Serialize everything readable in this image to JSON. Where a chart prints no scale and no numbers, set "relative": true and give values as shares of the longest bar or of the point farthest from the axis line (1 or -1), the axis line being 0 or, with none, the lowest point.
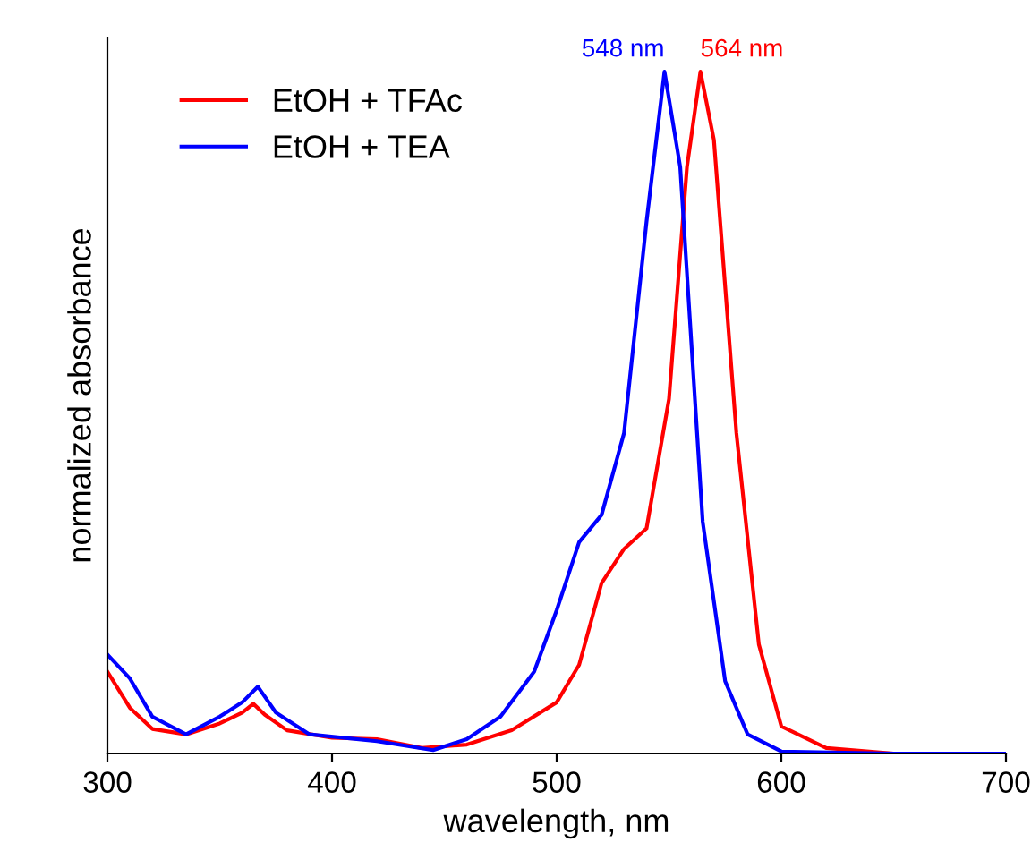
{
  "chart_data": {
    "type": "line",
    "relative": true,
    "xlabel": "wavelength, nm",
    "ylabel": "normalized absorbance",
    "xlim": [
      300,
      700
    ],
    "xticks": [
      300,
      400,
      500,
      600,
      700
    ],
    "legend": "top left",
    "grid": false,
    "tick_labels": "x",
    "annotations": [
      {
        "text": "548 nm",
        "x": 548,
        "y": 1.0
      },
      {
        "text": "564 nm",
        "x": 564,
        "y": 1.0
      }
    ],
    "series": [
      {
        "name": "EtOH + TFAc",
        "color": "#ff0000",
        "x": [
          300,
          310,
          320,
          335,
          350,
          360,
          365,
          370,
          380,
          400,
          420,
          440,
          460,
          480,
          500,
          510,
          520,
          530,
          540,
          550,
          558,
          564,
          570,
          580,
          590,
          600,
          620,
          650,
          700
        ],
        "values": [
          0.12,
          0.067,
          0.036,
          0.028,
          0.044,
          0.06,
          0.073,
          0.057,
          0.034,
          0.023,
          0.021,
          0.008,
          0.013,
          0.034,
          0.075,
          0.13,
          0.25,
          0.3,
          0.33,
          0.52,
          0.86,
          1.0,
          0.9,
          0.47,
          0.16,
          0.04,
          0.008,
          0,
          0
        ]
      },
      {
        "name": "EtOH + TEA",
        "color": "#0000ff",
        "x": [
          300,
          310,
          320,
          335,
          350,
          360,
          367,
          375,
          390,
          420,
          445,
          460,
          475,
          490,
          500,
          510,
          520,
          530,
          540,
          548,
          555,
          565,
          575,
          585,
          600,
          650,
          700
        ],
        "values": [
          0.145,
          0.11,
          0.054,
          0.028,
          0.054,
          0.075,
          0.098,
          0.06,
          0.028,
          0.018,
          0.005,
          0.021,
          0.054,
          0.12,
          0.21,
          0.31,
          0.35,
          0.47,
          0.78,
          1.0,
          0.86,
          0.34,
          0.106,
          0.028,
          0.003,
          0,
          0
        ]
      }
    ]
  }
}
